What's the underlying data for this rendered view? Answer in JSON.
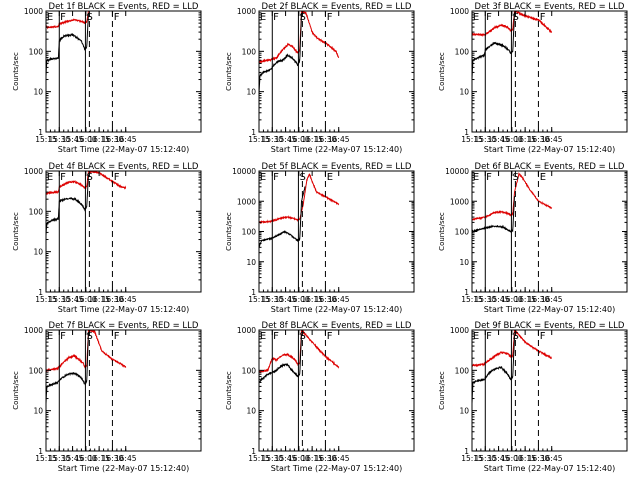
{
  "chart_data": {
    "type": "line",
    "shared": {
      "xlabel": "Start Time (22-May-07 15:12:40)",
      "ylabel": "Counts/sec",
      "xlim_min": [
        15,
        190
      ],
      "xticks": [
        {
          "label": "15:15",
          "m": 15
        },
        {
          "label": "15:30",
          "m": 30
        },
        {
          "label": "15:45",
          "m": 45
        },
        {
          "label": "16:00",
          "m": 60
        },
        {
          "label": "16:15",
          "m": 75
        },
        {
          "label": "16:30",
          "m": 90
        },
        {
          "label": "16:45",
          "m": 105
        }
      ],
      "yscale": "log",
      "series_colors": {
        "events": "#000000",
        "lld": "#dd0000"
      },
      "markers": [
        {
          "m": 30,
          "style": "solid"
        },
        {
          "m": 59.5,
          "style": "solid"
        },
        {
          "m": 64,
          "style": "dashed"
        },
        {
          "m": 90,
          "style": "dashed"
        }
      ]
    },
    "panels": [
      {
        "title": "Det 1f BLACK = Events, RED = LLD",
        "ylim": [
          1,
          1000
        ],
        "yticks": [
          "1",
          "10",
          "100",
          "1000"
        ],
        "letters": [
          "E",
          "F",
          "S",
          "F"
        ],
        "lld": [
          [
            15,
            400
          ],
          [
            20,
            400
          ],
          [
            29,
            410
          ],
          [
            30,
            480
          ],
          [
            40,
            560
          ],
          [
            47,
            600
          ],
          [
            55,
            550
          ],
          [
            59,
            500
          ],
          [
            61,
            540
          ],
          [
            63,
            1000
          ]
        ],
        "events": [
          [
            15,
            25
          ],
          [
            16,
            60
          ],
          [
            19,
            60
          ],
          [
            20,
            65
          ],
          [
            29,
            68
          ],
          [
            30,
            180
          ],
          [
            35,
            240
          ],
          [
            45,
            260
          ],
          [
            55,
            180
          ],
          [
            59,
            110
          ],
          [
            61,
            130
          ],
          [
            63,
            900
          ]
        ]
      },
      {
        "title": "Det 2f BLACK = Events, RED = LLD",
        "ylim": [
          1,
          1000
        ],
        "yticks": [
          "1",
          "10",
          "100",
          "1000"
        ],
        "letters": [
          "E",
          "F",
          "S",
          "F"
        ],
        "lld": [
          [
            15,
            55
          ],
          [
            28,
            62
          ],
          [
            35,
            70
          ],
          [
            40,
            100
          ],
          [
            48,
            150
          ],
          [
            53,
            130
          ],
          [
            57,
            100
          ],
          [
            59,
            90
          ],
          [
            61,
            110
          ],
          [
            63,
            1000
          ],
          [
            68,
            900
          ],
          [
            75,
            300
          ],
          [
            80,
            220
          ],
          [
            92,
            150
          ],
          [
            102,
            100
          ],
          [
            105,
            70
          ]
        ],
        "events": [
          [
            15,
            8
          ],
          [
            16,
            25
          ],
          [
            20,
            30
          ],
          [
            28,
            35
          ],
          [
            35,
            55
          ],
          [
            42,
            60
          ],
          [
            47,
            80
          ],
          [
            52,
            70
          ],
          [
            55,
            60
          ],
          [
            59,
            45
          ],
          [
            61,
            60
          ],
          [
            63,
            900
          ]
        ]
      },
      {
        "title": "Det 3f BLACK = Events, RED = LLD",
        "ylim": [
          1,
          1000
        ],
        "yticks": [
          "1",
          "10",
          "100",
          "1000"
        ],
        "letters": [
          "E",
          "F",
          "S",
          "F"
        ],
        "lld": [
          [
            15,
            260
          ],
          [
            30,
            260
          ],
          [
            40,
            380
          ],
          [
            48,
            450
          ],
          [
            55,
            400
          ],
          [
            59,
            320
          ],
          [
            61,
            350
          ],
          [
            63,
            1000
          ],
          [
            75,
            750
          ],
          [
            90,
            600
          ],
          [
            105,
            300
          ]
        ],
        "events": [
          [
            15,
            20
          ],
          [
            16,
            60
          ],
          [
            22,
            70
          ],
          [
            29,
            80
          ],
          [
            30,
            110
          ],
          [
            40,
            160
          ],
          [
            50,
            140
          ],
          [
            56,
            110
          ],
          [
            59,
            90
          ],
          [
            61,
            100
          ],
          [
            63,
            900
          ]
        ]
      },
      {
        "title": "Det 4f BLACK = Events, RED = LLD",
        "ylim": [
          1,
          1000
        ],
        "yticks": [
          "1",
          "10",
          "100",
          "1000"
        ],
        "letters": [
          "E",
          "F",
          "S",
          "F"
        ],
        "lld": [
          [
            15,
            280
          ],
          [
            29,
            300
          ],
          [
            30,
            400
          ],
          [
            40,
            520
          ],
          [
            47,
            550
          ],
          [
            55,
            450
          ],
          [
            59,
            380
          ],
          [
            61,
            420
          ],
          [
            63,
            1000
          ],
          [
            75,
            900
          ],
          [
            85,
            650
          ],
          [
            98,
            430
          ],
          [
            105,
            380
          ]
        ],
        "events": [
          [
            15,
            25
          ],
          [
            16,
            50
          ],
          [
            22,
            60
          ],
          [
            29,
            65
          ],
          [
            30,
            180
          ],
          [
            40,
            210
          ],
          [
            48,
            200
          ],
          [
            55,
            150
          ],
          [
            59,
            110
          ],
          [
            61,
            130
          ],
          [
            63,
            800
          ]
        ]
      },
      {
        "title": "Det 5f BLACK = Events, RED = LLD",
        "ylim": [
          1,
          10000
        ],
        "yticks": [
          "1",
          "10",
          "100",
          "1000",
          "10000"
        ],
        "letters": [
          "E",
          "F",
          "S",
          "E"
        ],
        "lld": [
          [
            15,
            200
          ],
          [
            30,
            220
          ],
          [
            40,
            280
          ],
          [
            48,
            300
          ],
          [
            54,
            270
          ],
          [
            59,
            240
          ],
          [
            61,
            260
          ],
          [
            65,
            800
          ],
          [
            69,
            5000
          ],
          [
            72,
            8000
          ],
          [
            75,
            4500
          ],
          [
            80,
            2000
          ],
          [
            90,
            1400
          ],
          [
            105,
            800
          ]
        ],
        "events": [
          [
            15,
            30
          ],
          [
            18,
            50
          ],
          [
            30,
            60
          ],
          [
            38,
            80
          ],
          [
            44,
            100
          ],
          [
            50,
            80
          ],
          [
            55,
            60
          ],
          [
            59,
            50
          ],
          [
            61,
            55
          ],
          [
            63,
            1000
          ],
          [
            67,
            3000
          ]
        ]
      },
      {
        "title": "Det 6f BLACK = Events, RED = LLD",
        "ylim": [
          1,
          10000
        ],
        "yticks": [
          "1",
          "10",
          "100",
          "1000",
          "10000"
        ],
        "letters": [
          "E",
          "F",
          "S",
          "E"
        ],
        "lld": [
          [
            15,
            250
          ],
          [
            30,
            300
          ],
          [
            40,
            420
          ],
          [
            48,
            450
          ],
          [
            55,
            400
          ],
          [
            59,
            350
          ],
          [
            61,
            380
          ],
          [
            63,
            2000
          ],
          [
            68,
            8000
          ],
          [
            72,
            6000
          ],
          [
            80,
            2500
          ],
          [
            90,
            1000
          ],
          [
            105,
            600
          ]
        ],
        "events": [
          [
            15,
            100
          ],
          [
            20,
            110
          ],
          [
            30,
            130
          ],
          [
            40,
            150
          ],
          [
            50,
            140
          ],
          [
            56,
            110
          ],
          [
            59,
            100
          ],
          [
            61,
            110
          ],
          [
            63,
            1500
          ]
        ]
      },
      {
        "title": "Det 7f BLACK = Events, RED = LLD",
        "ylim": [
          1,
          1000
        ],
        "yticks": [
          "1",
          "10",
          "100",
          "1000"
        ],
        "letters": [
          "E",
          "F",
          "S",
          "F"
        ],
        "lld": [
          [
            15,
            100
          ],
          [
            28,
            110
          ],
          [
            35,
            160
          ],
          [
            40,
            200
          ],
          [
            47,
            230
          ],
          [
            53,
            180
          ],
          [
            57,
            150
          ],
          [
            59,
            120
          ],
          [
            61,
            130
          ],
          [
            63,
            1000
          ],
          [
            70,
            900
          ],
          [
            78,
            300
          ],
          [
            88,
            200
          ],
          [
            98,
            150
          ],
          [
            105,
            120
          ]
        ],
        "events": [
          [
            15,
            15
          ],
          [
            16,
            40
          ],
          [
            22,
            45
          ],
          [
            28,
            50
          ],
          [
            33,
            65
          ],
          [
            40,
            80
          ],
          [
            46,
            85
          ],
          [
            52,
            75
          ],
          [
            57,
            55
          ],
          [
            59,
            45
          ],
          [
            61,
            55
          ],
          [
            63,
            900
          ]
        ]
      },
      {
        "title": "Det 8f BLACK = Events, RED = LLD",
        "ylim": [
          1,
          1000
        ],
        "yticks": [
          "1",
          "10",
          "100",
          "1000"
        ],
        "letters": [
          "E",
          "F",
          "S",
          "F"
        ],
        "lld": [
          [
            15,
            90
          ],
          [
            25,
            100
          ],
          [
            30,
            200
          ],
          [
            35,
            180
          ],
          [
            40,
            230
          ],
          [
            47,
            250
          ],
          [
            55,
            190
          ],
          [
            59,
            140
          ],
          [
            61,
            150
          ],
          [
            63,
            1000
          ],
          [
            75,
            500
          ],
          [
            90,
            220
          ],
          [
            105,
            120
          ]
        ],
        "events": [
          [
            15,
            50
          ],
          [
            18,
            60
          ],
          [
            25,
            80
          ],
          [
            30,
            90
          ],
          [
            35,
            100
          ],
          [
            40,
            130
          ],
          [
            47,
            140
          ],
          [
            54,
            90
          ],
          [
            59,
            70
          ],
          [
            61,
            80
          ],
          [
            63,
            800
          ]
        ]
      },
      {
        "title": "Det 9f BLACK = Events, RED = LLD",
        "ylim": [
          1,
          1000
        ],
        "yticks": [
          "1",
          "10",
          "100",
          "1000"
        ],
        "letters": [
          "E",
          "F",
          "S",
          "F"
        ],
        "lld": [
          [
            15,
            130
          ],
          [
            28,
            140
          ],
          [
            40,
            220
          ],
          [
            48,
            280
          ],
          [
            55,
            260
          ],
          [
            59,
            220
          ],
          [
            61,
            230
          ],
          [
            63,
            1000
          ],
          [
            75,
            500
          ],
          [
            90,
            300
          ],
          [
            105,
            200
          ]
        ],
        "events": [
          [
            15,
            15
          ],
          [
            16,
            50
          ],
          [
            22,
            55
          ],
          [
            29,
            60
          ],
          [
            35,
            90
          ],
          [
            42,
            110
          ],
          [
            48,
            120
          ],
          [
            55,
            80
          ],
          [
            59,
            60
          ],
          [
            61,
            70
          ],
          [
            63,
            700
          ]
        ]
      }
    ]
  }
}
